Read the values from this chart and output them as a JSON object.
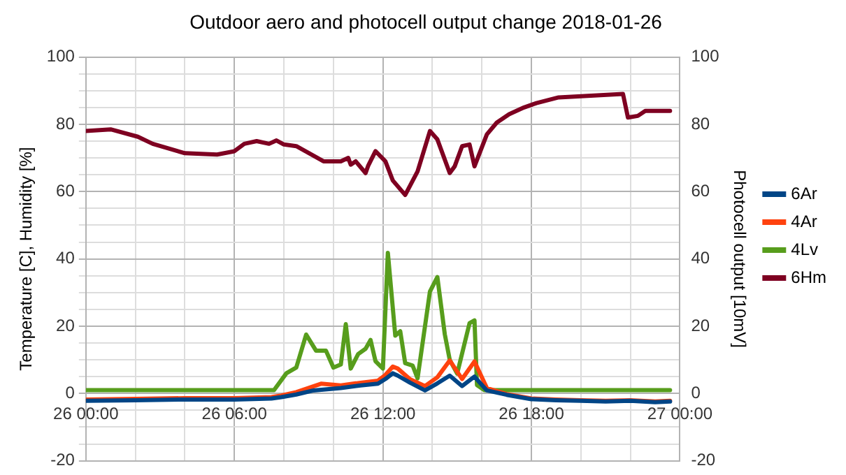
{
  "chart_data": {
    "type": "line",
    "title": "Outdoor aero and photocell output change 2018-01-26",
    "ylabel": "Temperature [C], Humidity [%]",
    "y2label": "Photocell output [10mV]",
    "xlim": [
      "2018-01-26T00:00",
      "2018-01-27T00:00"
    ],
    "xticks": [
      {
        "value": "2018-01-26T00:00",
        "label": "26 00:00"
      },
      {
        "value": "2018-01-26T02:00",
        "label": null
      },
      {
        "value": "2018-01-26T04:00",
        "label": null
      },
      {
        "value": "2018-01-26T06:00",
        "label": "26 06:00"
      },
      {
        "value": "2018-01-26T08:00",
        "label": null
      },
      {
        "value": "2018-01-26T10:00",
        "label": null
      },
      {
        "value": "2018-01-26T12:00",
        "label": "26 12:00"
      },
      {
        "value": "2018-01-26T14:00",
        "label": null
      },
      {
        "value": "2018-01-26T16:00",
        "label": null
      },
      {
        "value": "2018-01-26T18:00",
        "label": "26 18:00"
      },
      {
        "value": "2018-01-26T20:00",
        "label": null
      },
      {
        "value": "2018-01-26T22:00",
        "label": null
      },
      {
        "value": "2018-01-27T00:00",
        "label": "27 00:00"
      }
    ],
    "ylim": [
      -20,
      100
    ],
    "yticks": [
      -20,
      {
        "value": -15,
        "label": null
      },
      {
        "value": -10,
        "label": null
      },
      {
        "value": -5,
        "label": null
      },
      0,
      {
        "value": 5,
        "label": null
      },
      {
        "value": 10,
        "label": null
      },
      {
        "value": 15,
        "label": null
      },
      20,
      {
        "value": 25,
        "label": null
      },
      {
        "value": 30,
        "label": null
      },
      {
        "value": 35,
        "label": null
      },
      40,
      {
        "value": 45,
        "label": null
      },
      {
        "value": 50,
        "label": null
      },
      {
        "value": 55,
        "label": null
      },
      60,
      {
        "value": 65,
        "label": null
      },
      {
        "value": 70,
        "label": null
      },
      {
        "value": 75,
        "label": null
      },
      80,
      {
        "value": 85,
        "label": null
      },
      {
        "value": 90,
        "label": null
      },
      {
        "value": 95,
        "label": null
      },
      100
    ],
    "y2lim": [
      -20,
      100
    ],
    "y2ticks": [
      -20,
      0,
      20,
      40,
      60,
      80,
      100
    ],
    "grid": true,
    "legend": "right",
    "marker": "none",
    "line_style": "solid",
    "series": [
      {
        "name": "6Ar",
        "color": "#004586",
        "x": [
          "2018-01-26T00:00",
          "2018-01-26T02:00",
          "2018-01-26T04:00",
          "2018-01-26T06:00",
          "2018-01-26T07:30",
          "2018-01-26T07:54",
          "2018-01-26T08:30",
          "2018-01-26T09:12",
          "2018-01-26T10:18",
          "2018-01-26T11:06",
          "2018-01-26T11:48",
          "2018-01-26T12:06",
          "2018-01-26T12:24",
          "2018-01-26T12:36",
          "2018-01-26T13:06",
          "2018-01-26T13:42",
          "2018-01-26T14:12",
          "2018-01-26T14:42",
          "2018-01-26T15:12",
          "2018-01-26T15:42",
          "2018-01-26T16:12",
          "2018-01-26T17:00",
          "2018-01-26T18:00",
          "2018-01-26T19:00",
          "2018-01-26T20:00",
          "2018-01-26T21:00",
          "2018-01-26T22:00",
          "2018-01-26T23:00",
          "2018-01-26T23:36"
        ],
        "values": [
          -2.2,
          -2,
          -1.8,
          -1.8,
          -1.5,
          -1.1,
          -0.3,
          0.9,
          1.6,
          2.4,
          2.9,
          4.3,
          6,
          5.3,
          3.2,
          0.9,
          3,
          5.3,
          2.2,
          5,
          0.9,
          -0.4,
          -1.7,
          -2,
          -2.2,
          -2.4,
          -2.2,
          -2.6,
          -2.4
        ]
      },
      {
        "name": "4Ar",
        "color": "#ff420e",
        "x": [
          "2018-01-26T00:00",
          "2018-01-26T02:00",
          "2018-01-26T04:00",
          "2018-01-26T06:00",
          "2018-01-26T07:30",
          "2018-01-26T07:54",
          "2018-01-26T08:30",
          "2018-01-26T09:30",
          "2018-01-26T10:18",
          "2018-01-26T11:06",
          "2018-01-26T11:48",
          "2018-01-26T12:06",
          "2018-01-26T12:24",
          "2018-01-26T12:36",
          "2018-01-26T13:06",
          "2018-01-26T13:42",
          "2018-01-26T14:12",
          "2018-01-26T14:42",
          "2018-01-26T15:12",
          "2018-01-26T15:42",
          "2018-01-26T16:12",
          "2018-01-26T17:00",
          "2018-01-26T18:00",
          "2018-01-26T19:00",
          "2018-01-26T20:00",
          "2018-01-26T21:00",
          "2018-01-26T22:00",
          "2018-01-26T23:00",
          "2018-01-26T23:36"
        ],
        "values": [
          -1.8,
          -1.6,
          -1.4,
          -1.4,
          -1.1,
          -0.6,
          0.4,
          2.9,
          2.4,
          3.2,
          3.8,
          5.5,
          8,
          7.4,
          4.2,
          2.2,
          4.8,
          9.8,
          4.3,
          9.5,
          1.6,
          -0.2,
          -1.5,
          -1.8,
          -2,
          -2.2,
          -2,
          -2.4,
          -2.2
        ]
      },
      {
        "name": "4Lv",
        "color": "#579d1c",
        "x": [
          "2018-01-26T00:00",
          "2018-01-26T07:36",
          "2018-01-26T08:06",
          "2018-01-26T08:30",
          "2018-01-26T08:54",
          "2018-01-26T09:18",
          "2018-01-26T09:42",
          "2018-01-26T10:00",
          "2018-01-26T10:18",
          "2018-01-26T10:30",
          "2018-01-26T10:42",
          "2018-01-26T11:00",
          "2018-01-26T11:18",
          "2018-01-26T11:30",
          "2018-01-26T11:42",
          "2018-01-26T12:00",
          "2018-01-26T12:12",
          "2018-01-26T12:30",
          "2018-01-26T12:42",
          "2018-01-26T12:54",
          "2018-01-26T13:12",
          "2018-01-26T13:24",
          "2018-01-26T13:54",
          "2018-01-26T14:12",
          "2018-01-26T14:30",
          "2018-01-26T14:42",
          "2018-01-26T15:00",
          "2018-01-26T15:30",
          "2018-01-26T15:42",
          "2018-01-26T15:48",
          "2018-01-26T16:06",
          "2018-01-26T23:36"
        ],
        "values": [
          1,
          1,
          6,
          7.7,
          17.5,
          12.7,
          12.7,
          7.7,
          8.6,
          20.6,
          7.4,
          11.7,
          13.3,
          15.9,
          9.6,
          7.4,
          41.8,
          17.2,
          18.5,
          9,
          8.3,
          4.5,
          30.3,
          34.6,
          17.6,
          10,
          5.9,
          20.9,
          21.7,
          2.5,
          1,
          1
        ]
      },
      {
        "name": "6Hm",
        "color": "#7e0021",
        "x": [
          "2018-01-26T00:00",
          "2018-01-26T01:00",
          "2018-01-26T02:06",
          "2018-01-26T02:42",
          "2018-01-26T04:00",
          "2018-01-26T05:18",
          "2018-01-26T06:00",
          "2018-01-26T06:24",
          "2018-01-26T06:54",
          "2018-01-26T07:24",
          "2018-01-26T07:42",
          "2018-01-26T08:00",
          "2018-01-26T08:30",
          "2018-01-26T09:36",
          "2018-01-26T10:18",
          "2018-01-26T10:36",
          "2018-01-26T10:42",
          "2018-01-26T10:54",
          "2018-01-26T11:18",
          "2018-01-26T11:24",
          "2018-01-26T11:42",
          "2018-01-26T12:06",
          "2018-01-26T12:24",
          "2018-01-26T12:54",
          "2018-01-26T13:24",
          "2018-01-26T13:54",
          "2018-01-26T14:12",
          "2018-01-26T14:42",
          "2018-01-26T14:54",
          "2018-01-26T15:12",
          "2018-01-26T15:30",
          "2018-01-26T15:42",
          "2018-01-26T16:12",
          "2018-01-26T16:36",
          "2018-01-26T17:06",
          "2018-01-26T17:42",
          "2018-01-26T18:12",
          "2018-01-26T19:06",
          "2018-01-26T20:24",
          "2018-01-26T21:42",
          "2018-01-26T21:54",
          "2018-01-26T22:18",
          "2018-01-26T22:36",
          "2018-01-26T23:36"
        ],
        "values": [
          78,
          78.5,
          76.3,
          74.2,
          71.4,
          71,
          72,
          74.2,
          75,
          74.2,
          75.2,
          74,
          73.5,
          69,
          69,
          70,
          68,
          69,
          65.5,
          67.6,
          72,
          69,
          63.3,
          59,
          66,
          78,
          75.5,
          65.5,
          67.5,
          73.5,
          74,
          67.5,
          77,
          80.5,
          83,
          85,
          86.3,
          88,
          88.5,
          89,
          82,
          82.5,
          84,
          84
        ]
      }
    ]
  }
}
